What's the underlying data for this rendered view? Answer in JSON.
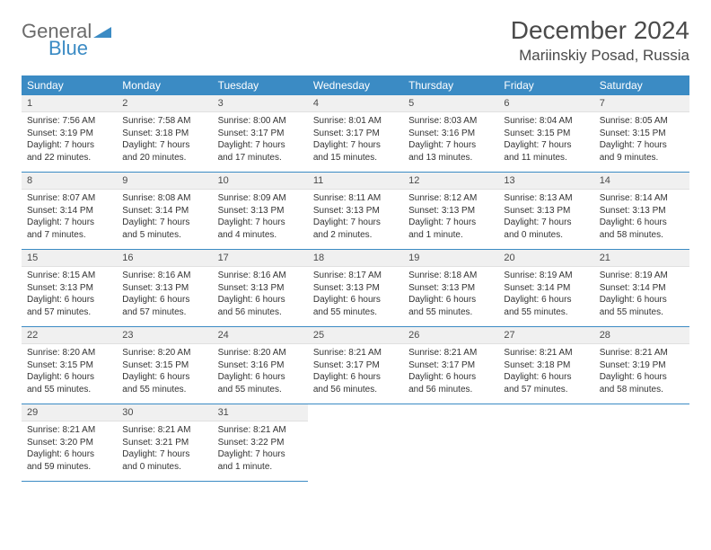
{
  "brand": {
    "general": "General",
    "blue": "Blue"
  },
  "title": "December 2024",
  "location": "Mariinskiy Posad, Russia",
  "colors": {
    "header_bg": "#3b8bc4",
    "header_text": "#ffffff",
    "daynum_bg": "#f0f0f0",
    "cell_border": "#3b8bc4",
    "body_text": "#333333",
    "logo_gray": "#6b6b6b",
    "logo_blue": "#3b8bc4"
  },
  "weekdays": [
    "Sunday",
    "Monday",
    "Tuesday",
    "Wednesday",
    "Thursday",
    "Friday",
    "Saturday"
  ],
  "days": [
    {
      "n": "1",
      "sunrise": "Sunrise: 7:56 AM",
      "sunset": "Sunset: 3:19 PM",
      "daylight": "Daylight: 7 hours and 22 minutes."
    },
    {
      "n": "2",
      "sunrise": "Sunrise: 7:58 AM",
      "sunset": "Sunset: 3:18 PM",
      "daylight": "Daylight: 7 hours and 20 minutes."
    },
    {
      "n": "3",
      "sunrise": "Sunrise: 8:00 AM",
      "sunset": "Sunset: 3:17 PM",
      "daylight": "Daylight: 7 hours and 17 minutes."
    },
    {
      "n": "4",
      "sunrise": "Sunrise: 8:01 AM",
      "sunset": "Sunset: 3:17 PM",
      "daylight": "Daylight: 7 hours and 15 minutes."
    },
    {
      "n": "5",
      "sunrise": "Sunrise: 8:03 AM",
      "sunset": "Sunset: 3:16 PM",
      "daylight": "Daylight: 7 hours and 13 minutes."
    },
    {
      "n": "6",
      "sunrise": "Sunrise: 8:04 AM",
      "sunset": "Sunset: 3:15 PM",
      "daylight": "Daylight: 7 hours and 11 minutes."
    },
    {
      "n": "7",
      "sunrise": "Sunrise: 8:05 AM",
      "sunset": "Sunset: 3:15 PM",
      "daylight": "Daylight: 7 hours and 9 minutes."
    },
    {
      "n": "8",
      "sunrise": "Sunrise: 8:07 AM",
      "sunset": "Sunset: 3:14 PM",
      "daylight": "Daylight: 7 hours and 7 minutes."
    },
    {
      "n": "9",
      "sunrise": "Sunrise: 8:08 AM",
      "sunset": "Sunset: 3:14 PM",
      "daylight": "Daylight: 7 hours and 5 minutes."
    },
    {
      "n": "10",
      "sunrise": "Sunrise: 8:09 AM",
      "sunset": "Sunset: 3:13 PM",
      "daylight": "Daylight: 7 hours and 4 minutes."
    },
    {
      "n": "11",
      "sunrise": "Sunrise: 8:11 AM",
      "sunset": "Sunset: 3:13 PM",
      "daylight": "Daylight: 7 hours and 2 minutes."
    },
    {
      "n": "12",
      "sunrise": "Sunrise: 8:12 AM",
      "sunset": "Sunset: 3:13 PM",
      "daylight": "Daylight: 7 hours and 1 minute."
    },
    {
      "n": "13",
      "sunrise": "Sunrise: 8:13 AM",
      "sunset": "Sunset: 3:13 PM",
      "daylight": "Daylight: 7 hours and 0 minutes."
    },
    {
      "n": "14",
      "sunrise": "Sunrise: 8:14 AM",
      "sunset": "Sunset: 3:13 PM",
      "daylight": "Daylight: 6 hours and 58 minutes."
    },
    {
      "n": "15",
      "sunrise": "Sunrise: 8:15 AM",
      "sunset": "Sunset: 3:13 PM",
      "daylight": "Daylight: 6 hours and 57 minutes."
    },
    {
      "n": "16",
      "sunrise": "Sunrise: 8:16 AM",
      "sunset": "Sunset: 3:13 PM",
      "daylight": "Daylight: 6 hours and 57 minutes."
    },
    {
      "n": "17",
      "sunrise": "Sunrise: 8:16 AM",
      "sunset": "Sunset: 3:13 PM",
      "daylight": "Daylight: 6 hours and 56 minutes."
    },
    {
      "n": "18",
      "sunrise": "Sunrise: 8:17 AM",
      "sunset": "Sunset: 3:13 PM",
      "daylight": "Daylight: 6 hours and 55 minutes."
    },
    {
      "n": "19",
      "sunrise": "Sunrise: 8:18 AM",
      "sunset": "Sunset: 3:13 PM",
      "daylight": "Daylight: 6 hours and 55 minutes."
    },
    {
      "n": "20",
      "sunrise": "Sunrise: 8:19 AM",
      "sunset": "Sunset: 3:14 PM",
      "daylight": "Daylight: 6 hours and 55 minutes."
    },
    {
      "n": "21",
      "sunrise": "Sunrise: 8:19 AM",
      "sunset": "Sunset: 3:14 PM",
      "daylight": "Daylight: 6 hours and 55 minutes."
    },
    {
      "n": "22",
      "sunrise": "Sunrise: 8:20 AM",
      "sunset": "Sunset: 3:15 PM",
      "daylight": "Daylight: 6 hours and 55 minutes."
    },
    {
      "n": "23",
      "sunrise": "Sunrise: 8:20 AM",
      "sunset": "Sunset: 3:15 PM",
      "daylight": "Daylight: 6 hours and 55 minutes."
    },
    {
      "n": "24",
      "sunrise": "Sunrise: 8:20 AM",
      "sunset": "Sunset: 3:16 PM",
      "daylight": "Daylight: 6 hours and 55 minutes."
    },
    {
      "n": "25",
      "sunrise": "Sunrise: 8:21 AM",
      "sunset": "Sunset: 3:17 PM",
      "daylight": "Daylight: 6 hours and 56 minutes."
    },
    {
      "n": "26",
      "sunrise": "Sunrise: 8:21 AM",
      "sunset": "Sunset: 3:17 PM",
      "daylight": "Daylight: 6 hours and 56 minutes."
    },
    {
      "n": "27",
      "sunrise": "Sunrise: 8:21 AM",
      "sunset": "Sunset: 3:18 PM",
      "daylight": "Daylight: 6 hours and 57 minutes."
    },
    {
      "n": "28",
      "sunrise": "Sunrise: 8:21 AM",
      "sunset": "Sunset: 3:19 PM",
      "daylight": "Daylight: 6 hours and 58 minutes."
    },
    {
      "n": "29",
      "sunrise": "Sunrise: 8:21 AM",
      "sunset": "Sunset: 3:20 PM",
      "daylight": "Daylight: 6 hours and 59 minutes."
    },
    {
      "n": "30",
      "sunrise": "Sunrise: 8:21 AM",
      "sunset": "Sunset: 3:21 PM",
      "daylight": "Daylight: 7 hours and 0 minutes."
    },
    {
      "n": "31",
      "sunrise": "Sunrise: 8:21 AM",
      "sunset": "Sunset: 3:22 PM",
      "daylight": "Daylight: 7 hours and 1 minute."
    }
  ]
}
